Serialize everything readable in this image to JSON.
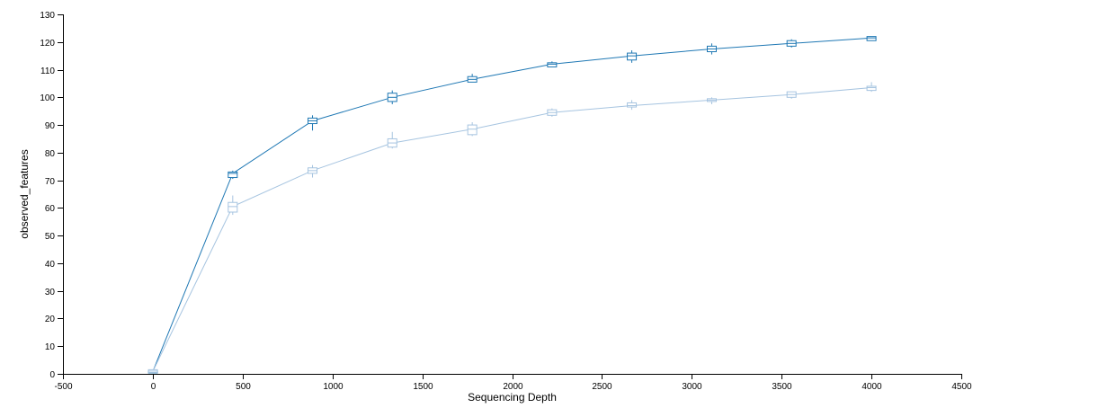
{
  "chart_data": {
    "type": "line",
    "xlabel": "Sequencing Depth",
    "ylabel": "observed_features",
    "xlim": [
      -500,
      4500
    ],
    "ylim": [
      0,
      130
    ],
    "x_ticks": [
      -500,
      0,
      500,
      1000,
      1500,
      2000,
      2500,
      3000,
      3500,
      4000,
      4500
    ],
    "y_ticks": [
      0,
      10,
      20,
      30,
      40,
      50,
      60,
      70,
      80,
      90,
      100,
      110,
      120,
      130
    ],
    "grid": false,
    "series": [
      {
        "color": "#1f78b4",
        "points": [
          {
            "x": 1,
            "median": 1,
            "q1": 1,
            "q3": 1,
            "min": 1,
            "max": 1
          },
          {
            "x": 445,
            "median": 72.5,
            "q1": 71,
            "q3": 73,
            "min": 70.5,
            "max": 73.5
          },
          {
            "x": 889,
            "median": 91.5,
            "q1": 90.5,
            "q3": 92.5,
            "min": 88,
            "max": 93.5
          },
          {
            "x": 1333,
            "median": 100,
            "q1": 98.5,
            "q3": 101.5,
            "min": 97.5,
            "max": 102.5
          },
          {
            "x": 1778,
            "median": 106.5,
            "q1": 105.5,
            "q3": 107.5,
            "min": 105.5,
            "max": 108.5
          },
          {
            "x": 2222,
            "median": 112,
            "q1": 111,
            "q3": 112.5,
            "min": 111,
            "max": 113
          },
          {
            "x": 2666,
            "median": 115,
            "q1": 113.5,
            "q3": 116,
            "min": 112.5,
            "max": 117
          },
          {
            "x": 3111,
            "median": 117.5,
            "q1": 116.5,
            "q3": 118.5,
            "min": 115.5,
            "max": 119.5
          },
          {
            "x": 3555,
            "median": 119.5,
            "q1": 118.5,
            "q3": 120.5,
            "min": 118,
            "max": 121
          },
          {
            "x": 4000,
            "median": 121.5,
            "q1": 120.5,
            "q3": 122,
            "min": 120.5,
            "max": 122
          }
        ]
      },
      {
        "color": "#a6c4e0",
        "points": [
          {
            "x": 1,
            "median": 1,
            "q1": 0.5,
            "q3": 1.5,
            "min": 0.5,
            "max": 1.5
          },
          {
            "x": 445,
            "median": 60.5,
            "q1": 58.5,
            "q3": 62,
            "min": 57.5,
            "max": 64.5
          },
          {
            "x": 889,
            "median": 73.5,
            "q1": 72.5,
            "q3": 74.5,
            "min": 71,
            "max": 75.5
          },
          {
            "x": 1333,
            "median": 83.5,
            "q1": 82,
            "q3": 85,
            "min": 81.5,
            "max": 87.5
          },
          {
            "x": 1778,
            "median": 88.5,
            "q1": 86.5,
            "q3": 90,
            "min": 86,
            "max": 91
          },
          {
            "x": 2222,
            "median": 94.5,
            "q1": 93.5,
            "q3": 95.5,
            "min": 93,
            "max": 96
          },
          {
            "x": 2666,
            "median": 97,
            "q1": 96.5,
            "q3": 98,
            "min": 95.5,
            "max": 99
          },
          {
            "x": 3111,
            "median": 99,
            "q1": 98.5,
            "q3": 99.5,
            "min": 97.5,
            "max": 100
          },
          {
            "x": 3555,
            "median": 101,
            "q1": 100,
            "q3": 102,
            "min": 99.5,
            "max": 102
          },
          {
            "x": 4000,
            "median": 103.5,
            "q1": 102.5,
            "q3": 104,
            "min": 102,
            "max": 105.5
          }
        ]
      }
    ]
  }
}
